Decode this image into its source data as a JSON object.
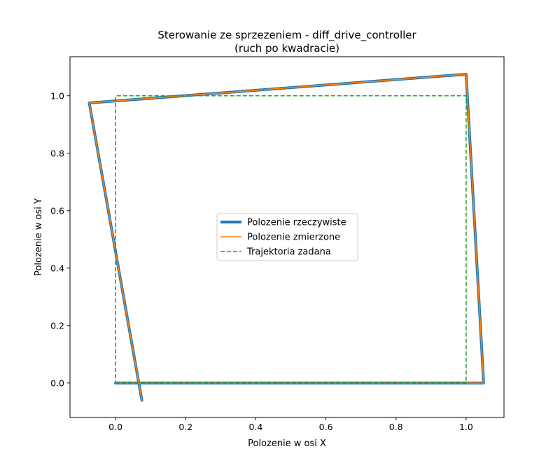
{
  "chart_data": {
    "type": "line",
    "title": "Sterowanie ze sprzezeniem - diff_drive_controller",
    "subtitle": "(ruch po kwadracie)",
    "xlabel": "Polozenie w osi X",
    "ylabel": "Polozenie w osi Y",
    "xlim": [
      -0.13,
      1.108
    ],
    "ylim": [
      -0.12,
      1.136
    ],
    "xticks": [
      {
        "value": 0.0,
        "label": "0.0"
      },
      {
        "value": 0.2,
        "label": "0.2"
      },
      {
        "value": 0.4,
        "label": "0.4"
      },
      {
        "value": 0.6,
        "label": "0.6"
      },
      {
        "value": 0.8,
        "label": "0.8"
      },
      {
        "value": 1.0,
        "label": "1.0"
      }
    ],
    "yticks": [
      {
        "value": 0.0,
        "label": "0.0"
      },
      {
        "value": 0.2,
        "label": "0.2"
      },
      {
        "value": 0.4,
        "label": "0.4"
      },
      {
        "value": 0.6,
        "label": "0.6"
      },
      {
        "value": 0.8,
        "label": "0.8"
      },
      {
        "value": 1.0,
        "label": "1.0"
      }
    ],
    "grid": false,
    "legend_position": "center",
    "series": [
      {
        "name": "Polozenie rzeczywiste",
        "color": "#1f77b4",
        "style": "solid-thick",
        "x": [
          0.0,
          1.05,
          1.0,
          -0.075,
          0.075
        ],
        "y": [
          0.0,
          0.0,
          1.075,
          0.975,
          -0.06
        ]
      },
      {
        "name": "Polozenie zmierzone",
        "color": "#ff7f0e",
        "style": "solid",
        "x": [
          0.0,
          1.05,
          1.0,
          -0.075,
          0.075
        ],
        "y": [
          0.0,
          0.0,
          1.075,
          0.975,
          -0.06
        ]
      },
      {
        "name": "Trajektoria zadana",
        "color": "#2ca02c",
        "style": "dashed",
        "x": [
          0.0,
          1.0,
          1.0,
          0.0,
          0.0
        ],
        "y": [
          0.0,
          0.0,
          1.0,
          1.0,
          0.0
        ]
      }
    ]
  }
}
